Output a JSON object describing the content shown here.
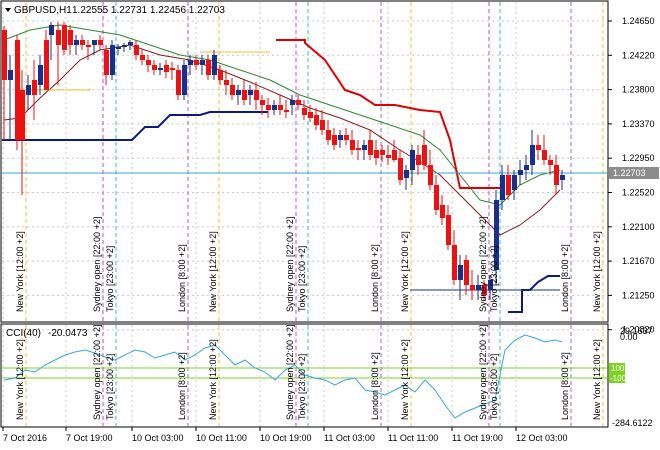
{
  "header": {
    "symbol": "GBPUSD,H1",
    "ohlc": "1.22555 1.22731 1.22456 1.22703"
  },
  "indicator": {
    "name": "CCI(40)",
    "value": "-20.0473",
    "levels": [
      "100",
      "-100"
    ],
    "scale_top": "29.1637",
    "scale_zero": "0.00",
    "scale_bottom": "-284.6122"
  },
  "price_axis": [
    "1.24650",
    "1.24220",
    "1.23800",
    "1.23370",
    "1.22950",
    "1.22520",
    "1.22100",
    "1.21670",
    "1.21250",
    "1.20820"
  ],
  "current_price": "1.22703",
  "time_axis": [
    "7 Oct 2016",
    "7 Oct 19:00",
    "10 Oct 03:00",
    "10 Oct 11:00",
    "10 Oct 19:00",
    "11 Oct 03:00",
    "11 Oct 11:00",
    "11 Oct 19:00",
    "12 Oct 03:00"
  ],
  "sessions": [
    {
      "label": "New York   [12:00 +2]"
    },
    {
      "label": "Sydney open   [22:00 +2]"
    },
    {
      "label": "Tokyo   [23:00 +2]"
    },
    {
      "label": "London   [8:00 +2]"
    },
    {
      "label": "New York   [12:00 +2]"
    },
    {
      "label": "Sydney open   [22:00 +2]"
    },
    {
      "label": "Tokyo   [23:00 +2]"
    },
    {
      "label": "London   [8:00 +2]"
    },
    {
      "label": "New York   [12:00 +2]"
    },
    {
      "label": "Sydney open   [22:00 +2]"
    },
    {
      "label": "Tokyo   [23:00 +2]"
    },
    {
      "label": "London   [8:00 +2]"
    },
    {
      "label": "New York   [12:00 +2]"
    }
  ],
  "colors": {
    "bull": "#1a2f8c",
    "bear": "#ee1111",
    "ma_green": "#2d8a2d",
    "ma_dark": "#8b1a1a",
    "stop_red": "#e00000",
    "stop_blue": "#0a1a80",
    "cci": "#3aa6d6",
    "level_line": "#7ed321",
    "vline_magenta": "#d040d0",
    "vline_cyan": "#30c0d0",
    "vline_orange": "#f0c030",
    "vline_purple": "#a060e0",
    "price_tag_bg": "#8c8c8c"
  }
}
